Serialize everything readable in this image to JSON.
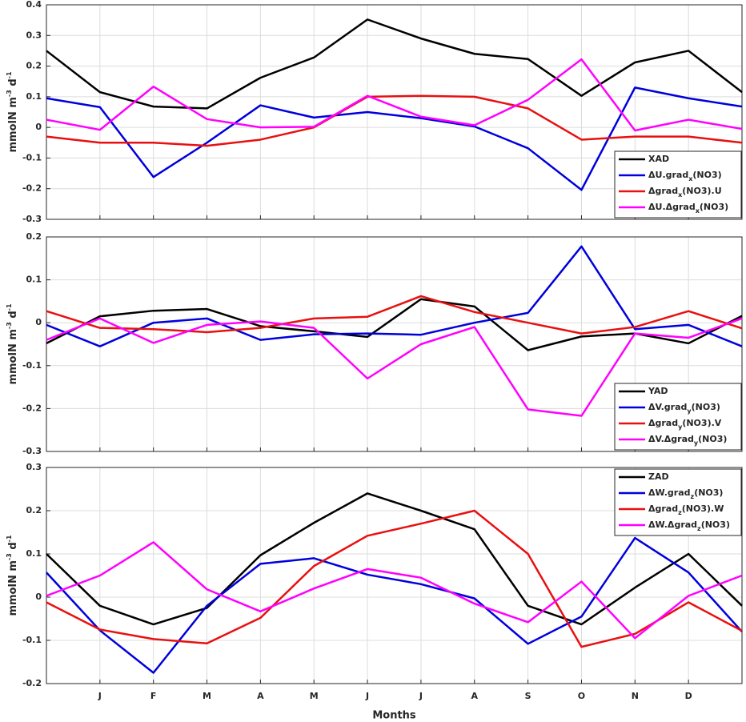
{
  "chart_data": [
    {
      "type": "line",
      "ylabel": "mmolN m-3 d-1",
      "legend": "lower right",
      "grid": true,
      "x": [
        0,
        1,
        2,
        3,
        4,
        5,
        6,
        7,
        8,
        9,
        10,
        11,
        12,
        13
      ],
      "xlim": [
        0,
        13
      ],
      "xticks": [
        1,
        2,
        3,
        4,
        5,
        6,
        7,
        8,
        9,
        10,
        11,
        12
      ],
      "ylim": [
        -0.3,
        0.4
      ],
      "yticks": [
        -0.3,
        -0.2,
        -0.1,
        0,
        0.1,
        0.2,
        0.3,
        0.4
      ],
      "series": [
        {
          "name": "XAD",
          "color": "#000000",
          "values": [
            0.25,
            0.115,
            0.068,
            0.062,
            0.162,
            0.228,
            0.352,
            0.29,
            0.24,
            0.223,
            0.103,
            0.212,
            0.25,
            0.115
          ]
        },
        {
          "name": "ΔU.gradx(NO3)",
          "color": "#0000dd",
          "values": [
            0.095,
            0.066,
            -0.162,
            -0.05,
            0.072,
            0.032,
            0.05,
            0.03,
            0.003,
            -0.068,
            -0.204,
            0.13,
            0.095,
            0.068
          ]
        },
        {
          "name": "Δgradx(NO3).U",
          "color": "#e81010",
          "values": [
            -0.03,
            -0.05,
            -0.05,
            -0.06,
            -0.04,
            0.0,
            0.1,
            0.103,
            0.1,
            0.062,
            -0.04,
            -0.03,
            -0.03,
            -0.05
          ]
        },
        {
          "name": "ΔU.Δgradx(NO3)",
          "color": "#ff00ff",
          "values": [
            0.025,
            -0.008,
            0.133,
            0.027,
            0.0,
            0.002,
            0.103,
            0.035,
            0.007,
            0.09,
            0.222,
            -0.01,
            0.025,
            -0.005
          ]
        }
      ]
    },
    {
      "type": "line",
      "ylabel": "mmolN m-3 d-1",
      "legend": "lower right",
      "grid": true,
      "x": [
        0,
        1,
        2,
        3,
        4,
        5,
        6,
        7,
        8,
        9,
        10,
        11,
        12,
        13
      ],
      "xlim": [
        0,
        13
      ],
      "xticks": [
        1,
        2,
        3,
        4,
        5,
        6,
        7,
        8,
        9,
        10,
        11,
        12
      ],
      "ylim": [
        -0.3,
        0.2
      ],
      "yticks": [
        -0.3,
        -0.2,
        -0.1,
        0,
        0.1,
        0.2
      ],
      "series": [
        {
          "name": "YAD",
          "color": "#000000",
          "values": [
            -0.048,
            0.015,
            0.028,
            0.032,
            -0.008,
            -0.02,
            -0.033,
            0.055,
            0.038,
            -0.064,
            -0.032,
            -0.025,
            -0.048,
            0.016
          ]
        },
        {
          "name": "ΔV.grady(NO3)",
          "color": "#0000dd",
          "values": [
            -0.005,
            -0.055,
            0.0,
            0.01,
            -0.04,
            -0.027,
            -0.025,
            -0.028,
            0.0,
            0.023,
            0.178,
            -0.015,
            -0.005,
            -0.055
          ]
        },
        {
          "name": "Δgrady(NO3).V",
          "color": "#e81010",
          "values": [
            0.027,
            -0.012,
            -0.015,
            -0.022,
            -0.012,
            0.01,
            0.014,
            0.062,
            0.025,
            0.0,
            -0.025,
            -0.01,
            0.027,
            -0.013
          ]
        },
        {
          "name": "ΔV.Δgrady(NO3)",
          "color": "#ff00ff",
          "values": [
            -0.04,
            0.01,
            -0.047,
            -0.005,
            0.003,
            -0.012,
            -0.13,
            -0.05,
            -0.01,
            -0.202,
            -0.217,
            -0.025,
            -0.035,
            0.01
          ]
        }
      ]
    },
    {
      "type": "line",
      "ylabel": "mmolN m-3 d-1",
      "xlabel": "Months",
      "legend": "upper right",
      "grid": true,
      "x": [
        0,
        1,
        2,
        3,
        4,
        5,
        6,
        7,
        8,
        9,
        10,
        11,
        12,
        13
      ],
      "xlim": [
        0,
        13
      ],
      "xticks": [
        {
          "value": 1,
          "label": "J"
        },
        {
          "value": 2,
          "label": "F"
        },
        {
          "value": 3,
          "label": "M"
        },
        {
          "value": 4,
          "label": "A"
        },
        {
          "value": 5,
          "label": "M"
        },
        {
          "value": 6,
          "label": "J"
        },
        {
          "value": 7,
          "label": "J"
        },
        {
          "value": 8,
          "label": "A"
        },
        {
          "value": 9,
          "label": "S"
        },
        {
          "value": 10,
          "label": "O"
        },
        {
          "value": 11,
          "label": "N"
        },
        {
          "value": 12,
          "label": "D"
        }
      ],
      "ylim": [
        -0.2,
        0.3
      ],
      "yticks": [
        -0.2,
        -0.1,
        0,
        0.1,
        0.2,
        0.3
      ],
      "series": [
        {
          "name": "ZAD",
          "color": "#000000",
          "values": [
            0.1,
            -0.02,
            -0.063,
            -0.025,
            0.097,
            0.172,
            0.24,
            0.2,
            0.157,
            -0.02,
            -0.063,
            0.022,
            0.1,
            -0.02
          ]
        },
        {
          "name": "ΔW.gradz(NO3)",
          "color": "#0000dd",
          "values": [
            0.057,
            -0.077,
            -0.175,
            -0.02,
            0.077,
            0.09,
            0.052,
            0.03,
            -0.003,
            -0.108,
            -0.045,
            0.137,
            0.057,
            -0.08
          ]
        },
        {
          "name": "Δgradz(NO3).W",
          "color": "#e81010",
          "values": [
            -0.012,
            -0.075,
            -0.097,
            -0.107,
            -0.048,
            0.072,
            0.142,
            0.17,
            0.2,
            0.1,
            -0.115,
            -0.085,
            -0.012,
            -0.078
          ]
        },
        {
          "name": "ΔW.Δgradz(NO3)",
          "color": "#ff00ff",
          "values": [
            0.003,
            0.05,
            0.127,
            0.018,
            -0.033,
            0.02,
            0.065,
            0.045,
            -0.015,
            -0.058,
            0.036,
            -0.095,
            0.003,
            0.05
          ]
        }
      ]
    }
  ]
}
